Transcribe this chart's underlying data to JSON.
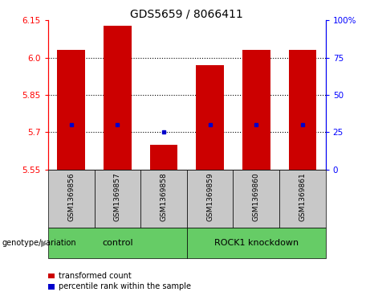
{
  "title": "GDS5659 / 8066411",
  "samples": [
    "GSM1369856",
    "GSM1369857",
    "GSM1369858",
    "GSM1369859",
    "GSM1369860",
    "GSM1369861"
  ],
  "bar_values": [
    6.03,
    6.13,
    5.65,
    5.97,
    6.03,
    6.03
  ],
  "percentile_values": [
    5.73,
    5.73,
    5.7,
    5.73,
    5.73,
    5.73
  ],
  "y_min": 5.55,
  "y_max": 6.15,
  "y_ticks_left": [
    5.55,
    5.7,
    5.85,
    6.0,
    6.15
  ],
  "y_ticks_right": [
    0,
    25,
    50,
    75,
    100
  ],
  "bar_color": "#cc0000",
  "dot_color": "#0000cc",
  "bar_width": 0.6,
  "group_box_color": "#c8c8c8",
  "green_color": "#66cc66",
  "legend_items": [
    {
      "color": "#cc0000",
      "label": "transformed count"
    },
    {
      "color": "#0000cc",
      "label": "percentile rank within the sample"
    }
  ],
  "genotype_label": "genotype/variation",
  "title_fontsize": 10,
  "tick_fontsize": 7.5,
  "sample_fontsize": 6.5
}
